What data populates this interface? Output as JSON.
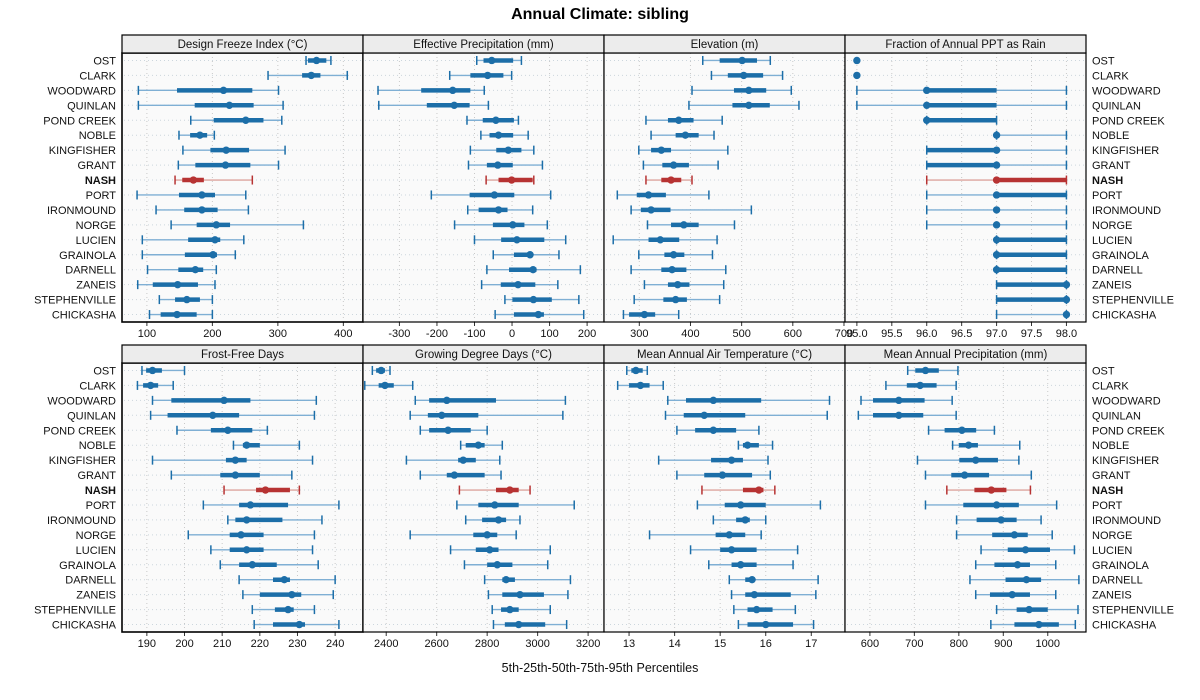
{
  "title": "Annual Climate: sibling",
  "xlabel": "5th-25th-50th-75th-95th Percentiles",
  "highlight_station": "NASH",
  "colors": {
    "blue": "#1c6ea8",
    "blue_light": "#7fafd4",
    "red": "#b73333",
    "red_light": "#dda49e",
    "panel_header_bg": "#ececec",
    "panel_bg": "#fafafa",
    "gridline": "#c9c9c9",
    "row_guide": "#ccd6dd",
    "border": "#000000"
  },
  "stations": [
    "OST",
    "CLARK",
    "WOODWARD",
    "QUINLAN",
    "POND CREEK",
    "NOBLE",
    "KINGFISHER",
    "GRANT",
    "NASH",
    "PORT",
    "IRONMOUND",
    "NORGE",
    "LUCIEN",
    "GRAINOLA",
    "DARNELL",
    "ZANEIS",
    "STEPHENVILLE",
    "CHICKASHA"
  ],
  "chart_data": [
    {
      "type": "percentile-range",
      "title": "Design Freeze Index (°C)",
      "ticks": [
        100,
        200,
        300,
        400
      ],
      "tick_decimals": 0,
      "xlim": [
        62,
        430
      ],
      "percentiles": [
        5,
        25,
        50,
        75,
        95
      ],
      "values": [
        [
          343,
          346,
          359,
          374,
          381
        ],
        [
          285,
          337,
          351,
          365,
          406
        ],
        [
          87,
          146,
          217,
          261,
          301
        ],
        [
          87,
          173,
          226,
          263,
          308
        ],
        [
          167,
          202,
          251,
          278,
          306
        ],
        [
          149,
          166,
          181,
          192,
          203
        ],
        [
          155,
          197,
          221,
          256,
          311
        ],
        [
          148,
          174,
          220,
          258,
          301
        ],
        [
          143,
          154,
          171,
          187,
          261
        ],
        [
          85,
          149,
          184,
          204,
          251
        ],
        [
          114,
          157,
          184,
          208,
          255
        ],
        [
          137,
          176,
          206,
          227,
          339
        ],
        [
          93,
          163,
          204,
          212,
          248
        ],
        [
          93,
          158,
          201,
          207,
          235
        ],
        [
          101,
          148,
          174,
          186,
          206
        ],
        [
          86,
          109,
          147,
          178,
          204
        ],
        [
          119,
          143,
          161,
          181,
          200
        ],
        [
          104,
          121,
          146,
          176,
          200
        ]
      ]
    },
    {
      "type": "percentile-range",
      "title": "Effective Precipitation (mm)",
      "ticks": [
        -300,
        -200,
        -100,
        0,
        100,
        200
      ],
      "tick_decimals": 0,
      "xlim": [
        -397,
        245
      ],
      "percentiles": [
        5,
        25,
        50,
        75,
        95
      ],
      "values": [
        [
          -94,
          -76,
          -54,
          3,
          25
        ],
        [
          -166,
          -111,
          -65,
          -23,
          -1
        ],
        [
          -357,
          -242,
          -158,
          -111,
          -74
        ],
        [
          -355,
          -227,
          -154,
          -113,
          -63
        ],
        [
          -120,
          -78,
          -43,
          5,
          17
        ],
        [
          -83,
          -60,
          -36,
          3,
          43
        ],
        [
          -111,
          -42,
          -10,
          25,
          58
        ],
        [
          -116,
          -67,
          -38,
          2,
          81
        ],
        [
          -69,
          -36,
          -1,
          55,
          58
        ],
        [
          -215,
          -113,
          -47,
          6,
          103
        ],
        [
          -118,
          -89,
          -36,
          -12,
          55
        ],
        [
          -153,
          -51,
          2,
          33,
          94
        ],
        [
          -100,
          -29,
          13,
          86,
          143
        ],
        [
          -50,
          5,
          48,
          56,
          125
        ],
        [
          -67,
          -8,
          56,
          65,
          182
        ],
        [
          -81,
          -30,
          16,
          62,
          122
        ],
        [
          -19,
          1,
          57,
          106,
          178
        ],
        [
          -45,
          5,
          70,
          85,
          191
        ]
      ]
    },
    {
      "type": "percentile-range",
      "title": "Elevation (m)",
      "ticks": [
        300,
        400,
        500,
        600,
        700
      ],
      "tick_decimals": 0,
      "xlim": [
        231,
        702
      ],
      "percentiles": [
        5,
        25,
        50,
        75,
        95
      ],
      "values": [
        [
          424,
          457,
          501,
          530,
          556
        ],
        [
          441,
          473,
          504,
          542,
          580
        ],
        [
          403,
          485,
          514,
          548,
          597
        ],
        [
          397,
          482,
          514,
          555,
          612
        ],
        [
          313,
          356,
          377,
          406,
          462
        ],
        [
          323,
          371,
          390,
          416,
          446
        ],
        [
          299,
          323,
          343,
          362,
          473
        ],
        [
          308,
          345,
          367,
          397,
          454
        ],
        [
          313,
          343,
          362,
          382,
          403
        ],
        [
          257,
          295,
          318,
          352,
          436
        ],
        [
          284,
          303,
          323,
          361,
          519
        ],
        [
          316,
          362,
          387,
          416,
          486
        ],
        [
          249,
          318,
          341,
          378,
          452
        ],
        [
          299,
          349,
          367,
          388,
          443
        ],
        [
          284,
          343,
          364,
          392,
          469
        ],
        [
          310,
          356,
          375,
          398,
          465
        ],
        [
          290,
          347,
          371,
          393,
          457
        ],
        [
          269,
          280,
          310,
          331,
          377
        ]
      ]
    },
    {
      "type": "percentile-range",
      "title": "Fraction of Annual PPT as Rain",
      "ticks": [
        95.0,
        95.5,
        96.0,
        96.5,
        97.0,
        97.5,
        98.0
      ],
      "tick_decimals": 1,
      "xlim": [
        94.83,
        98.28
      ],
      "percentiles": [
        5,
        25,
        50,
        75,
        95
      ],
      "values": [
        [
          95,
          95,
          95,
          95,
          95
        ],
        [
          95,
          95,
          95,
          95,
          95
        ],
        [
          95,
          96,
          96,
          97,
          98
        ],
        [
          95,
          96,
          96,
          97,
          98
        ],
        [
          96,
          96,
          96,
          97,
          97
        ],
        [
          97,
          97,
          97,
          97,
          98
        ],
        [
          96,
          96,
          97,
          97,
          98
        ],
        [
          96,
          96,
          97,
          97,
          98
        ],
        [
          96,
          97,
          97,
          98,
          98
        ],
        [
          96,
          97,
          97,
          98,
          98
        ],
        [
          96,
          97,
          97,
          97,
          98
        ],
        [
          96,
          97,
          97,
          97,
          98
        ],
        [
          97,
          97,
          97,
          98,
          98
        ],
        [
          97,
          97,
          97,
          98,
          98
        ],
        [
          97,
          97,
          97,
          98,
          98
        ],
        [
          97,
          97,
          98,
          98,
          98
        ],
        [
          97,
          97,
          98,
          98,
          98
        ],
        [
          97,
          98,
          98,
          98,
          98
        ]
      ]
    },
    {
      "type": "percentile-range",
      "title": "Frost-Free Days",
      "ticks": [
        190,
        200,
        210,
        220,
        230,
        240
      ],
      "tick_decimals": 0,
      "xlim": [
        183.4,
        247.4
      ],
      "percentiles": [
        5,
        25,
        50,
        75,
        95
      ],
      "values": [
        [
          188.7,
          189.8,
          191.5,
          194,
          200
        ],
        [
          187.5,
          189,
          191,
          193,
          197
        ],
        [
          191.5,
          196.5,
          210.5,
          217.5,
          235
        ],
        [
          191,
          195.5,
          207.5,
          214.5,
          234.5
        ],
        [
          198,
          207,
          211.5,
          218,
          222
        ],
        [
          213,
          215.5,
          216.5,
          220,
          230.5
        ],
        [
          191.5,
          211,
          213.5,
          216.5,
          234
        ],
        [
          196.5,
          209.5,
          213.5,
          220,
          228.5
        ],
        [
          210.5,
          219,
          221.5,
          228,
          230.5
        ],
        [
          205,
          214.5,
          217.5,
          227.5,
          241
        ],
        [
          211.5,
          213.5,
          216.5,
          226,
          236.5
        ],
        [
          201,
          212,
          215,
          221,
          234.5
        ],
        [
          207,
          212,
          216.5,
          221,
          234
        ],
        [
          209.5,
          214.5,
          218,
          224.5,
          235.5
        ],
        [
          214.5,
          223.5,
          226.5,
          228,
          240
        ],
        [
          215.5,
          220,
          228.5,
          231,
          239.5
        ],
        [
          218,
          224,
          227.5,
          229,
          234.5
        ],
        [
          218.5,
          223.5,
          230.5,
          232,
          241
        ]
      ]
    },
    {
      "type": "percentile-range",
      "title": "Growing Degree Days (°C)",
      "ticks": [
        2400,
        2600,
        2800,
        3000,
        3200
      ],
      "tick_decimals": 0,
      "xlim": [
        2308,
        3263
      ],
      "percentiles": [
        5,
        25,
        50,
        75,
        95
      ],
      "values": [
        [
          2345,
          2360,
          2380,
          2395,
          2415
        ],
        [
          2315,
          2370,
          2395,
          2430,
          2505
        ],
        [
          2515,
          2570,
          2640,
          2835,
          3110
        ],
        [
          2495,
          2565,
          2620,
          2765,
          3100
        ],
        [
          2535,
          2570,
          2645,
          2735,
          2800
        ],
        [
          2695,
          2715,
          2765,
          2790,
          2860
        ],
        [
          2480,
          2685,
          2705,
          2755,
          2850
        ],
        [
          2535,
          2640,
          2670,
          2790,
          2855
        ],
        [
          2690,
          2835,
          2890,
          2925,
          2970
        ],
        [
          2680,
          2765,
          2830,
          2925,
          3145
        ],
        [
          2715,
          2780,
          2845,
          2875,
          2930
        ],
        [
          2495,
          2745,
          2800,
          2840,
          2915
        ],
        [
          2655,
          2755,
          2810,
          2845,
          3050
        ],
        [
          2710,
          2800,
          2840,
          2900,
          3040
        ],
        [
          2790,
          2860,
          2875,
          2910,
          3130
        ],
        [
          2805,
          2860,
          2930,
          3025,
          3120
        ],
        [
          2820,
          2855,
          2890,
          2925,
          3050
        ],
        [
          2825,
          2870,
          2925,
          3030,
          3115
        ]
      ]
    },
    {
      "type": "percentile-range",
      "title": "Mean Annual Air Temperature (°C)",
      "ticks": [
        13,
        14,
        15,
        16,
        17
      ],
      "tick_decimals": 0,
      "xlim": [
        12.45,
        17.74
      ],
      "percentiles": [
        5,
        25,
        50,
        75,
        95
      ],
      "values": [
        [
          12.95,
          13.05,
          13.15,
          13.3,
          13.4
        ],
        [
          12.75,
          13.0,
          13.25,
          13.45,
          13.75
        ],
        [
          13.85,
          14.25,
          14.85,
          15.9,
          17.4
        ],
        [
          13.8,
          14.2,
          14.65,
          15.55,
          17.35
        ],
        [
          14.05,
          14.45,
          14.85,
          15.35,
          15.85
        ],
        [
          15.4,
          15.5,
          15.6,
          15.85,
          16.15
        ],
        [
          13.65,
          14.8,
          15.25,
          15.5,
          16.05
        ],
        [
          14.05,
          14.65,
          15.05,
          15.7,
          16.1
        ],
        [
          14.6,
          15.5,
          15.85,
          15.95,
          16.2
        ],
        [
          14.5,
          15.1,
          15.45,
          16.0,
          17.2
        ],
        [
          14.85,
          15.35,
          15.55,
          15.65,
          16.0
        ],
        [
          13.45,
          14.9,
          15.2,
          15.55,
          15.9
        ],
        [
          14.35,
          15.0,
          15.25,
          15.8,
          16.7
        ],
        [
          14.75,
          15.25,
          15.45,
          15.8,
          16.6
        ],
        [
          15.2,
          15.55,
          15.7,
          15.75,
          17.15
        ],
        [
          15.25,
          15.55,
          15.75,
          16.55,
          17.1
        ],
        [
          15.3,
          15.6,
          15.8,
          16.15,
          16.65
        ],
        [
          15.4,
          15.6,
          16.0,
          16.6,
          17.05
        ]
      ]
    },
    {
      "type": "percentile-range",
      "title": "Mean Annual Precipitation (mm)",
      "ticks": [
        600,
        700,
        800,
        900,
        1000
      ],
      "tick_decimals": 0,
      "xlim": [
        544,
        1086
      ],
      "percentiles": [
        5,
        25,
        50,
        75,
        95
      ],
      "values": [
        [
          685,
          702,
          725,
          755,
          798
        ],
        [
          636,
          683,
          713,
          750,
          794
        ],
        [
          580,
          607,
          665,
          723,
          785
        ],
        [
          574,
          607,
          665,
          720,
          794
        ],
        [
          732,
          768,
          807,
          839,
          880
        ],
        [
          786,
          800,
          822,
          843,
          937
        ],
        [
          707,
          801,
          838,
          888,
          935
        ],
        [
          725,
          783,
          813,
          868,
          963
        ],
        [
          773,
          835,
          873,
          907,
          961
        ],
        [
          725,
          810,
          885,
          935,
          1020
        ],
        [
          795,
          840,
          895,
          930,
          985
        ],
        [
          795,
          875,
          925,
          955,
          1010
        ],
        [
          850,
          910,
          950,
          1005,
          1060
        ],
        [
          838,
          880,
          932,
          960,
          1018
        ],
        [
          825,
          905,
          952,
          985,
          1070
        ],
        [
          838,
          870,
          920,
          960,
          1018
        ],
        [
          885,
          930,
          958,
          1000,
          1068
        ],
        [
          872,
          925,
          980,
          1025,
          1062
        ]
      ]
    }
  ]
}
